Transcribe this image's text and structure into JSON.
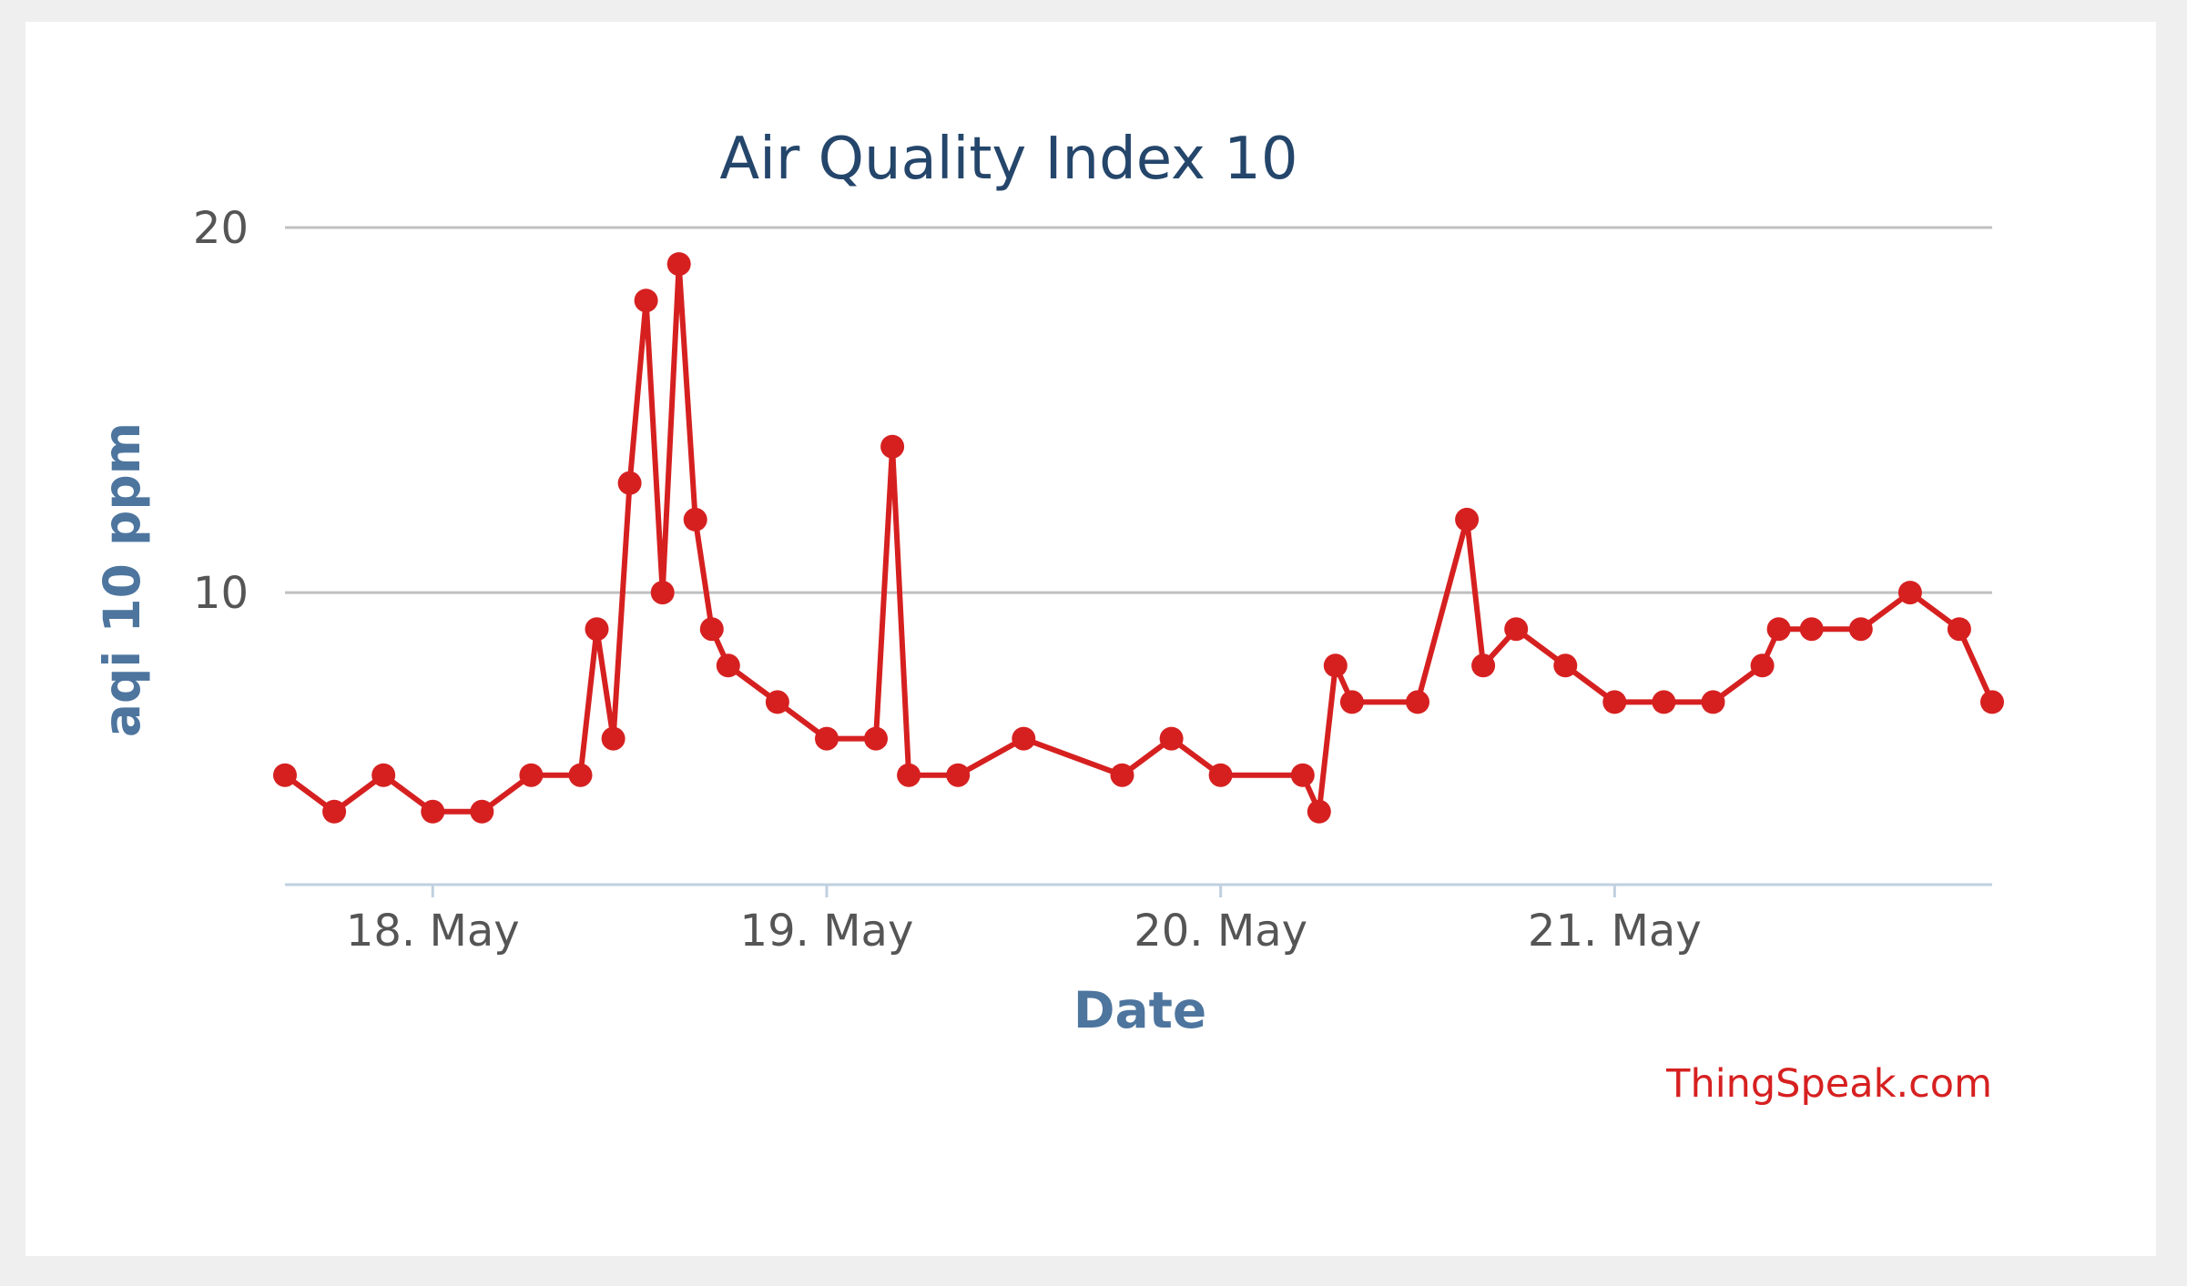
{
  "credit": "ThingSpeak.com",
  "chart_data": {
    "type": "line",
    "title": "Air Quality Index 10",
    "xlabel": "Date",
    "ylabel": "aqi 10 ppm",
    "x_tick_labels": [
      "18. May",
      "19. May",
      "20. May",
      "21. May"
    ],
    "y_tick_labels": [
      "10",
      "20"
    ],
    "xlim": [
      "2018-05-17 15:00",
      "2018-05-21 23:00"
    ],
    "ylim": [
      2,
      20
    ],
    "grid": true,
    "legend": "none",
    "series": [
      {
        "color": "#d62020",
        "x": [
          "2018-05-17 15:00",
          "2018-05-17 18:00",
          "2018-05-17 21:00",
          "2018-05-18 00:00",
          "2018-05-18 03:00",
          "2018-05-18 06:00",
          "2018-05-18 09:00",
          "2018-05-18 10:00",
          "2018-05-18 11:00",
          "2018-05-18 12:00",
          "2018-05-18 13:00",
          "2018-05-18 14:00",
          "2018-05-18 15:00",
          "2018-05-18 16:00",
          "2018-05-18 17:00",
          "2018-05-18 18:00",
          "2018-05-18 21:00",
          "2018-05-19 00:00",
          "2018-05-19 03:00",
          "2018-05-19 04:00",
          "2018-05-19 05:00",
          "2018-05-19 08:00",
          "2018-05-19 12:00",
          "2018-05-19 18:00",
          "2018-05-19 21:00",
          "2018-05-20 00:00",
          "2018-05-20 05:00",
          "2018-05-20 06:00",
          "2018-05-20 07:00",
          "2018-05-20 08:00",
          "2018-05-20 12:00",
          "2018-05-20 15:00",
          "2018-05-20 16:00",
          "2018-05-20 18:00",
          "2018-05-20 21:00",
          "2018-05-21 00:00",
          "2018-05-21 03:00",
          "2018-05-21 06:00",
          "2018-05-21 09:00",
          "2018-05-21 10:00",
          "2018-05-21 12:00",
          "2018-05-21 15:00",
          "2018-05-21 18:00",
          "2018-05-21 21:00",
          "2018-05-21 23:00"
        ],
        "y": [
          5,
          4,
          5,
          4,
          4,
          5,
          5,
          9,
          6,
          13,
          18,
          10,
          19,
          12,
          9,
          8,
          7,
          6,
          6,
          14,
          5,
          5,
          6,
          5,
          6,
          5,
          5,
          4,
          8,
          7,
          7,
          12,
          8,
          9,
          8,
          7,
          7,
          7,
          8,
          9,
          9,
          9,
          10,
          9,
          7
        ]
      }
    ]
  }
}
